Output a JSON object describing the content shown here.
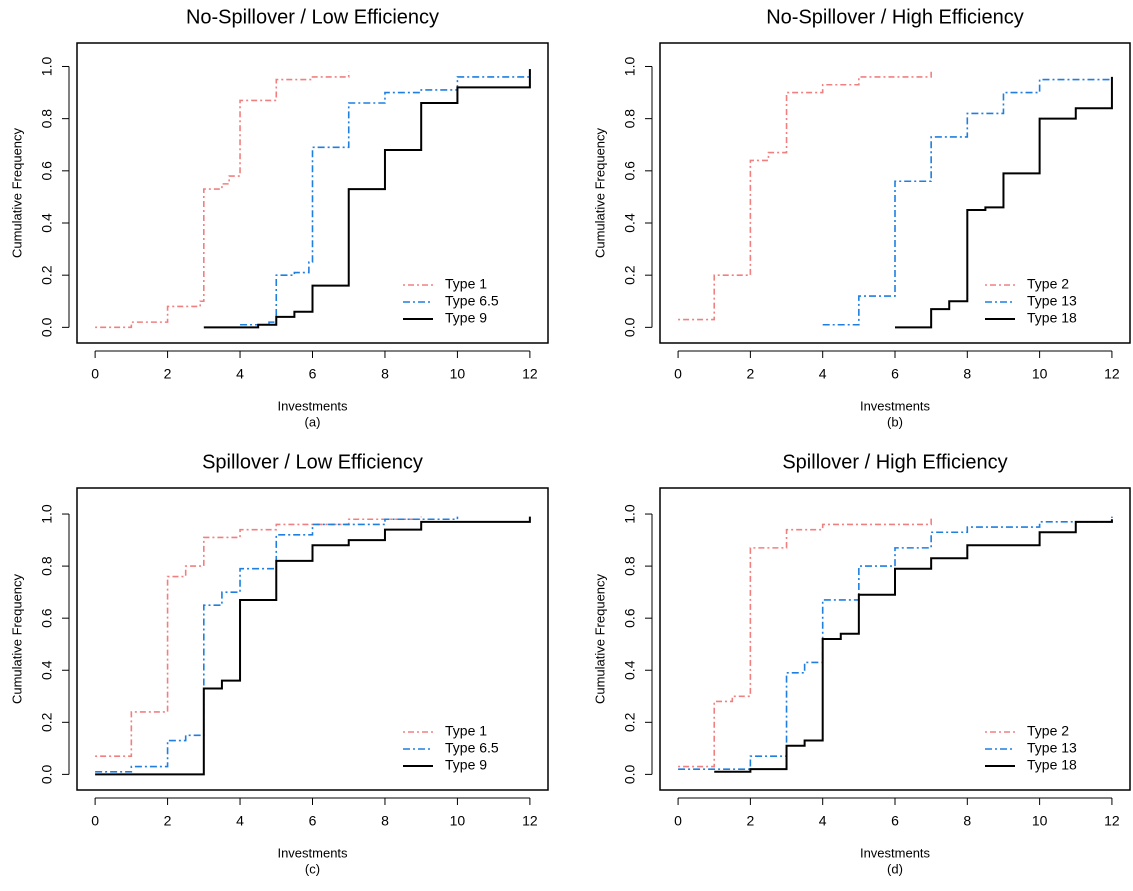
{
  "chart_data": [
    {
      "type": "step",
      "title": "No-Spillover / Low Efficiency",
      "xlabel": "Investments",
      "caption": "(a)",
      "ylabel": "Cumulative Frequency",
      "xlim": [
        -0.5,
        12.5
      ],
      "ylim": [
        -0.06,
        1.09
      ],
      "xticks": [
        0,
        2,
        4,
        6,
        8,
        10,
        12
      ],
      "yticks": [
        {
          "value": 0,
          "label": "0.0"
        },
        {
          "value": 0.2,
          "label": "0.2"
        },
        {
          "value": 0.4,
          "label": "0.4"
        },
        {
          "value": 0.6,
          "label": "0.6"
        },
        {
          "value": 0.8,
          "label": "0.8"
        },
        {
          "value": 1,
          "label": "1.0"
        }
      ],
      "legend": "bottomright",
      "series": [
        {
          "name": "Type 1",
          "color": "#f08080",
          "dash": "2,3,6,3",
          "x": [
            0,
            1,
            2,
            2.9,
            3,
            3.5,
            3.7,
            4,
            5,
            6,
            7
          ],
          "values": [
            0.0,
            0.02,
            0.08,
            0.1,
            0.53,
            0.55,
            0.58,
            0.87,
            0.95,
            0.96,
            0.98
          ]
        },
        {
          "name": "Type 6.5",
          "color": "#1e7fe0",
          "dash": "7,3,2,3",
          "x": [
            4,
            4.8,
            5,
            5.5,
            5.9,
            6,
            7,
            8,
            9,
            10,
            12
          ],
          "values": [
            0.01,
            0.02,
            0.2,
            0.21,
            0.25,
            0.69,
            0.86,
            0.9,
            0.91,
            0.96,
            0.99
          ]
        },
        {
          "name": "Type 9",
          "color": "#000000",
          "dash": "none",
          "x": [
            3,
            4.5,
            5,
            5.5,
            6,
            7,
            8,
            9,
            10,
            12
          ],
          "values": [
            0.0,
            0.01,
            0.04,
            0.06,
            0.16,
            0.53,
            0.68,
            0.86,
            0.92,
            0.99
          ]
        }
      ]
    },
    {
      "type": "step",
      "title": "No-Spillover / High Efficiency",
      "xlabel": "Investments",
      "caption": "(b)",
      "ylabel": "Cumulative Frequency",
      "xlim": [
        -0.5,
        12.5
      ],
      "ylim": [
        -0.06,
        1.09
      ],
      "xticks": [
        0,
        2,
        4,
        6,
        8,
        10,
        12
      ],
      "yticks": [
        {
          "value": 0,
          "label": "0.0"
        },
        {
          "value": 0.2,
          "label": "0.2"
        },
        {
          "value": 0.4,
          "label": "0.4"
        },
        {
          "value": 0.6,
          "label": "0.6"
        },
        {
          "value": 0.8,
          "label": "0.8"
        },
        {
          "value": 1,
          "label": "1.0"
        }
      ],
      "legend": "bottomright",
      "series": [
        {
          "name": "Type 2",
          "color": "#f08080",
          "dash": "2,3,6,3",
          "x": [
            0,
            1,
            2,
            2.5,
            3,
            4,
            5,
            7
          ],
          "values": [
            0.03,
            0.2,
            0.64,
            0.67,
            0.9,
            0.93,
            0.96,
            0.98
          ]
        },
        {
          "name": "Type 13",
          "color": "#1e7fe0",
          "dash": "7,3,2,3",
          "x": [
            4,
            5,
            6,
            7,
            8,
            9,
            10,
            12
          ],
          "values": [
            0.01,
            0.12,
            0.56,
            0.73,
            0.82,
            0.9,
            0.95,
            0.97
          ]
        },
        {
          "name": "Type 18",
          "color": "#000000",
          "dash": "none",
          "x": [
            6,
            7,
            7.5,
            8,
            8.5,
            9,
            10,
            11,
            12
          ],
          "values": [
            0.0,
            0.07,
            0.1,
            0.45,
            0.46,
            0.59,
            0.8,
            0.84,
            0.96
          ]
        }
      ]
    },
    {
      "type": "step",
      "title": "Spillover / Low Efficiency",
      "xlabel": "Investments",
      "caption": "(c)",
      "ylabel": "Cumulative Frequency",
      "xlim": [
        -0.5,
        12.5
      ],
      "ylim": [
        -0.06,
        1.1
      ],
      "xticks": [
        0,
        2,
        4,
        6,
        8,
        10,
        12
      ],
      "yticks": [
        {
          "value": 0,
          "label": "0.0"
        },
        {
          "value": 0.2,
          "label": "0.2"
        },
        {
          "value": 0.4,
          "label": "0.4"
        },
        {
          "value": 0.6,
          "label": "0.6"
        },
        {
          "value": 0.8,
          "label": "0.8"
        },
        {
          "value": 1,
          "label": "1.0"
        }
      ],
      "legend": "bottomright",
      "series": [
        {
          "name": "Type 1",
          "color": "#f08080",
          "dash": "2,3,6,3",
          "x": [
            0,
            1,
            2,
            2.5,
            3,
            4,
            5,
            7,
            9
          ],
          "values": [
            0.07,
            0.24,
            0.76,
            0.8,
            0.91,
            0.94,
            0.96,
            0.98,
            0.99
          ]
        },
        {
          "name": "Type 6.5",
          "color": "#1e7fe0",
          "dash": "7,3,2,3",
          "x": [
            0,
            1,
            2,
            2.5,
            3,
            3.5,
            4,
            5,
            6,
            8,
            10
          ],
          "values": [
            0.01,
            0.03,
            0.13,
            0.15,
            0.65,
            0.7,
            0.79,
            0.92,
            0.96,
            0.98,
            0.99
          ]
        },
        {
          "name": "Type 9",
          "color": "#000000",
          "dash": "none",
          "x": [
            0,
            3,
            3.5,
            4,
            5,
            6,
            7,
            8,
            9,
            12
          ],
          "values": [
            0.0,
            0.33,
            0.36,
            0.67,
            0.82,
            0.88,
            0.9,
            0.94,
            0.97,
            0.99
          ]
        }
      ]
    },
    {
      "type": "step",
      "title": "Spillover / High Efficiency",
      "xlabel": "Investments",
      "caption": "(d)",
      "ylabel": "Cumulative Frequency",
      "xlim": [
        -0.5,
        12.5
      ],
      "ylim": [
        -0.06,
        1.1
      ],
      "xticks": [
        0,
        2,
        4,
        6,
        8,
        10,
        12
      ],
      "yticks": [
        {
          "value": 0,
          "label": "0.0"
        },
        {
          "value": 0.2,
          "label": "0.2"
        },
        {
          "value": 0.4,
          "label": "0.4"
        },
        {
          "value": 0.6,
          "label": "0.6"
        },
        {
          "value": 0.8,
          "label": "0.8"
        },
        {
          "value": 1,
          "label": "1.0"
        }
      ],
      "legend": "bottomright",
      "series": [
        {
          "name": "Type 2",
          "color": "#f08080",
          "dash": "2,3,6,3",
          "x": [
            0,
            1,
            1.5,
            2,
            3,
            4,
            7
          ],
          "values": [
            0.03,
            0.28,
            0.3,
            0.87,
            0.94,
            0.96,
            0.99
          ]
        },
        {
          "name": "Type 13",
          "color": "#1e7fe0",
          "dash": "7,3,2,3",
          "x": [
            0,
            2,
            3,
            3.5,
            4,
            5,
            6,
            7,
            8,
            10,
            12
          ],
          "values": [
            0.02,
            0.07,
            0.39,
            0.43,
            0.67,
            0.8,
            0.87,
            0.93,
            0.95,
            0.97,
            0.99
          ]
        },
        {
          "name": "Type 18",
          "color": "#000000",
          "dash": "none",
          "x": [
            1,
            2,
            3,
            3.5,
            4,
            4.5,
            5,
            6,
            7,
            8,
            10,
            11,
            12
          ],
          "values": [
            0.01,
            0.02,
            0.11,
            0.13,
            0.52,
            0.54,
            0.69,
            0.79,
            0.83,
            0.88,
            0.93,
            0.97,
            0.98
          ]
        }
      ]
    }
  ]
}
